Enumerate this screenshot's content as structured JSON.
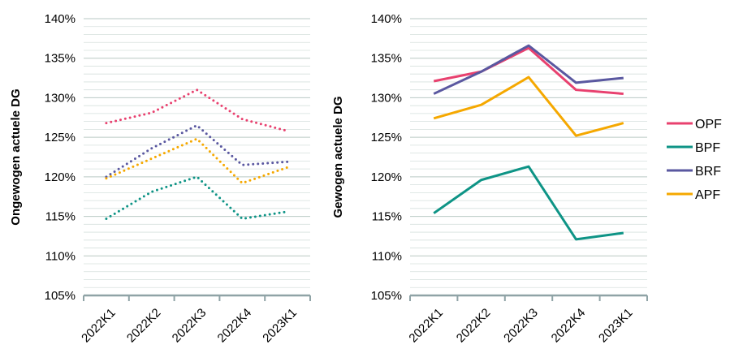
{
  "chart_data": [
    {
      "type": "line",
      "line_style": "dotted",
      "categories": [
        "2022K1",
        "2022K2",
        "2022K3",
        "2022K4",
        "2023K1"
      ],
      "ylabel": "Ongewogen actuele DG",
      "ylim": [
        1.05,
        1.4
      ],
      "yticks": [
        "105%",
        "110%",
        "115%",
        "120%",
        "125%",
        "130%",
        "135%",
        "140%"
      ],
      "grid": true,
      "series": [
        {
          "name": "OPF",
          "color": "#e8416f",
          "values": [
            1.268,
            1.281,
            1.31,
            1.273,
            1.258
          ]
        },
        {
          "name": "BPF",
          "color": "#0e9486",
          "values": [
            1.147,
            1.181,
            1.2,
            1.147,
            1.156
          ]
        },
        {
          "name": "BRF",
          "color": "#5a58a0",
          "values": [
            1.2,
            1.236,
            1.265,
            1.215,
            1.219
          ]
        },
        {
          "name": "APF",
          "color": "#f5a800",
          "values": [
            1.198,
            1.223,
            1.248,
            1.192,
            1.212
          ]
        }
      ]
    },
    {
      "type": "line",
      "line_style": "solid",
      "categories": [
        "2022K1",
        "2022K2",
        "2022K3",
        "2022K4",
        "2023K1"
      ],
      "ylabel": "Gewogen actuele DG",
      "ylim": [
        1.05,
        1.4
      ],
      "yticks": [
        "105%",
        "110%",
        "115%",
        "120%",
        "125%",
        "130%",
        "135%",
        "140%"
      ],
      "grid": true,
      "legend": "right",
      "series": [
        {
          "name": "OPF",
          "color": "#e8416f",
          "values": [
            1.321,
            1.333,
            1.363,
            1.31,
            1.305
          ]
        },
        {
          "name": "BPF",
          "color": "#0e9486",
          "values": [
            1.154,
            1.196,
            1.213,
            1.121,
            1.129
          ]
        },
        {
          "name": "BRF",
          "color": "#5a58a0",
          "values": [
            1.305,
            1.333,
            1.366,
            1.319,
            1.325
          ]
        },
        {
          "name": "APF",
          "color": "#f5a800",
          "values": [
            1.274,
            1.291,
            1.326,
            1.252,
            1.268
          ]
        }
      ]
    }
  ]
}
